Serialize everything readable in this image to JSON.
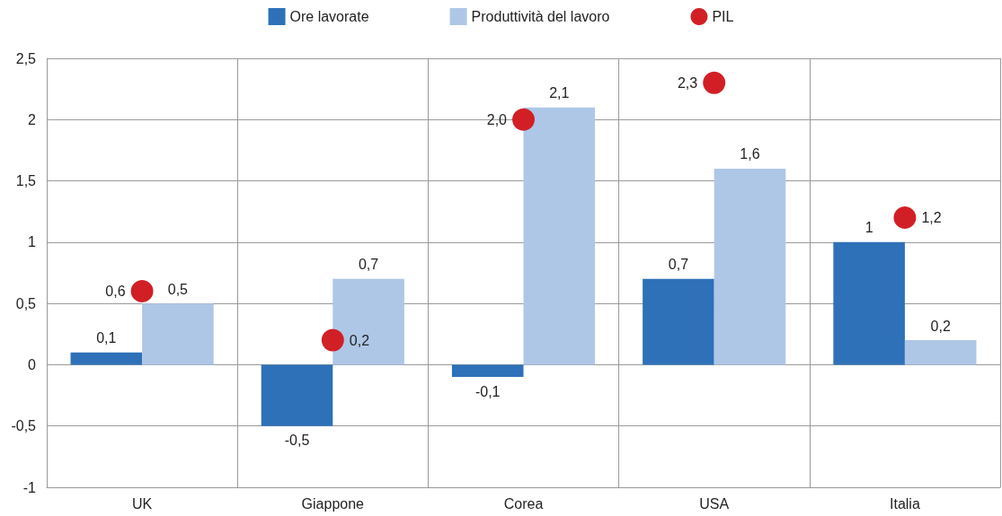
{
  "chart_data": {
    "type": "bar",
    "categories": [
      "UK",
      "Giappone",
      "Corea",
      "USA",
      "Italia"
    ],
    "series": [
      {
        "name": "Ore lavorate",
        "color": "#2e71b8",
        "values": [
          0.1,
          -0.5,
          -0.1,
          0.7,
          1
        ],
        "value_labels": [
          "0,1",
          "-0,5",
          "-0,1",
          "0,7",
          "1"
        ]
      },
      {
        "name": "Produttività del lavoro",
        "color": "#aec7e7",
        "values": [
          0.5,
          0.7,
          2.1,
          1.6,
          0.2
        ],
        "value_labels": [
          "0,5",
          "0,7",
          "2,1",
          "1,6",
          "0,2"
        ]
      },
      {
        "name": "PIL",
        "type": "scatter",
        "color": "#d21f26",
        "x": [
          "UK",
          "Giappone",
          "Corea",
          "USA",
          "Italia"
        ],
        "values": [
          0.6,
          0.2,
          2.0,
          2.3,
          1.2
        ],
        "value_labels": [
          "0,6",
          "0,2",
          "2,0",
          "2,3",
          "1,2"
        ]
      }
    ],
    "ylim": [
      -1,
      2.5
    ],
    "yticks": [
      -1,
      {
        "value": -0.5,
        "label": "-0,5"
      },
      0,
      {
        "value": 0.5,
        "label": "0,5"
      },
      1,
      {
        "value": 1.5,
        "label": "1,5"
      },
      2,
      {
        "value": 2.5,
        "label": "2,5"
      }
    ],
    "grid": true,
    "legend": "top",
    "marker": "circle"
  }
}
